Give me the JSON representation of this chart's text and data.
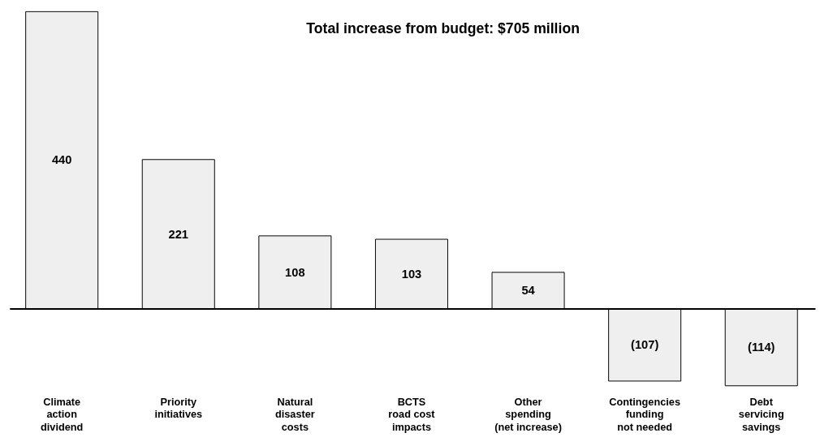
{
  "chart_data": {
    "type": "bar",
    "title": "Total increase from budget: $705 million",
    "categories": [
      "Climate\naction\ndividend",
      "Priority\ninitiatives",
      "Natural\ndisaster\ncosts",
      "BCTS\nroad cost\nimpacts",
      "Other\nspending\n(net increase)",
      "Contingencies\nfunding\nnot needed",
      "Debt\nservicing\nsavings"
    ],
    "values": [
      440,
      221,
      108,
      103,
      54,
      -107,
      -114
    ],
    "value_labels": [
      "440",
      "221",
      "108",
      "103",
      "54",
      "(107)",
      "(114)"
    ],
    "color": "#efefef",
    "grid": false
  }
}
